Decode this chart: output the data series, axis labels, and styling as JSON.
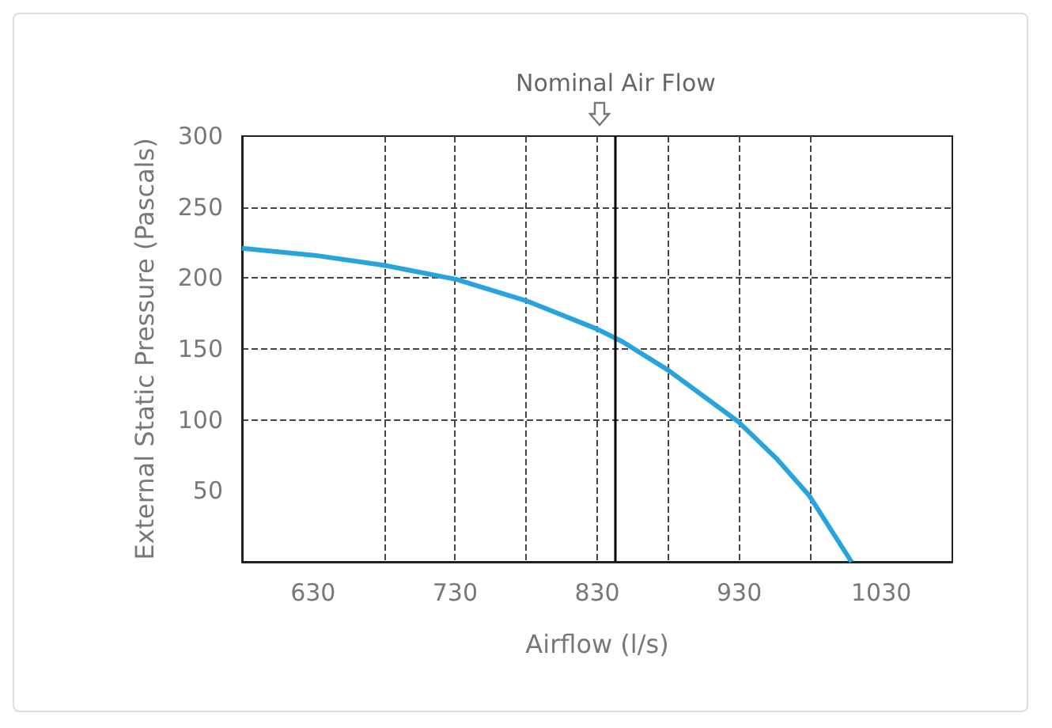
{
  "chart_data": {
    "type": "line",
    "xlabel": "Airflow (l/s)",
    "ylabel": "External Static Pressure (Pascals)",
    "x": [
      580,
      631,
      680,
      731,
      780,
      830,
      848,
      880,
      929,
      956,
      979,
      1009
    ],
    "series": [
      {
        "color": "#29a3dc",
        "values": [
          221,
          216,
          209,
          199,
          184,
          164,
          155,
          135,
          99,
          73,
          47,
          0
        ]
      }
    ],
    "xlim": [
      580,
      1080
    ],
    "xticks": [
      630,
      {
        "value": 680,
        "label": null
      },
      730,
      {
        "value": 780,
        "label": null
      },
      830,
      {
        "value": 880,
        "label": null
      },
      930,
      {
        "value": 980,
        "label": null
      },
      1030
    ],
    "ylim": [
      0,
      300
    ],
    "yticks": [
      50,
      100,
      150,
      200,
      250,
      300
    ],
    "ref_lines": [
      {
        "axis": "x",
        "value": 843,
        "label": "Nominal Air Flow",
        "color": "#000000",
        "line_style": "solid"
      }
    ],
    "grid": true,
    "marker": "none",
    "line_style": "solid"
  }
}
